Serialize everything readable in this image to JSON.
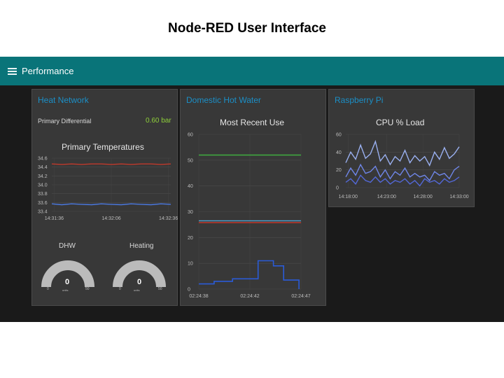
{
  "slide": {
    "title": "Node-RED User Interface"
  },
  "header": {
    "title": "Performance",
    "menu_icon": "hamburger-menu-icon"
  },
  "colors": {
    "header": "#097479",
    "card": "#383838",
    "card_title": "#1b8fc7",
    "value_green": "#8ecf3a",
    "gauge_track": "#bbbbbb"
  },
  "cards": {
    "heat": {
      "title": "Heat Network",
      "differential_label": "Primary Differential",
      "differential_value": "0.60 bar",
      "temps_title": "Primary Temperatures",
      "dhw_label": "DHW",
      "heating_label": "Heating",
      "gauge_min": "0",
      "gauge_max": "50",
      "gauge_unit": "units",
      "dhw_value": "0",
      "heating_value": "0"
    },
    "dhw": {
      "title": "Domestic Hot Water",
      "chart_title": "Most Recent Use"
    },
    "pi": {
      "title": "Raspberry Pi",
      "chart_title": "CPU % Load"
    }
  },
  "chart_data": [
    {
      "type": "line",
      "title": "Primary Temperatures",
      "x_ticks": [
        "14:31:36",
        "14:32:06",
        "14:32:36"
      ],
      "y_ticks": [
        "34.6",
        "34.4",
        "34.2",
        "34.0",
        "33.8",
        "33.6",
        "33.4"
      ],
      "ylim": [
        33.4,
        34.6
      ],
      "series": [
        {
          "color": "#c0392b",
          "values": [
            34.47,
            34.46,
            34.47,
            34.46,
            34.47,
            34.47,
            34.46,
            34.47,
            34.46,
            34.47,
            34.47,
            34.46,
            34.47
          ]
        },
        {
          "color": "#4a78e0",
          "values": [
            33.57,
            33.55,
            33.57,
            33.56,
            33.55,
            33.57,
            33.56,
            33.55,
            33.57,
            33.56,
            33.55,
            33.57,
            33.56
          ]
        }
      ]
    },
    {
      "type": "line",
      "title": "Most Recent Use",
      "x_ticks": [
        "02:24:38",
        "02:24:42",
        "02:24:47"
      ],
      "y_ticks": [
        "60",
        "50",
        "40",
        "30",
        "20",
        "10",
        "0"
      ],
      "ylim": [
        0,
        60
      ],
      "series": [
        {
          "color": "#3fae3f",
          "values": [
            52,
            52,
            52,
            52,
            52,
            52,
            52,
            52,
            52
          ]
        },
        {
          "color": "#4fa3d1",
          "values": [
            26.5,
            26.5,
            26.5,
            26.5,
            26.5,
            26.5,
            26.5,
            26.5,
            26.5
          ]
        },
        {
          "color": "#c0392b",
          "values": [
            25.8,
            25.8,
            25.8,
            25.8,
            25.8,
            25.8,
            25.8,
            25.8,
            25.8
          ]
        }
      ],
      "step_series": {
        "color": "#2a5bd7",
        "points": [
          [
            0,
            2
          ],
          [
            0.15,
            2
          ],
          [
            0.15,
            3
          ],
          [
            0.33,
            3
          ],
          [
            0.33,
            4
          ],
          [
            0.58,
            4
          ],
          [
            0.58,
            11
          ],
          [
            0.73,
            11
          ],
          [
            0.73,
            9
          ],
          [
            0.83,
            9
          ],
          [
            0.83,
            3.5
          ],
          [
            0.98,
            3.5
          ],
          [
            0.98,
            0
          ]
        ]
      }
    },
    {
      "type": "line",
      "title": "CPU % Load",
      "x_ticks": [
        "14:18:00",
        "14:23:00",
        "14:28:00",
        "14:33:00"
      ],
      "y_ticks": [
        "60",
        "40",
        "20",
        "0"
      ],
      "ylim": [
        0,
        60
      ],
      "series": [
        {
          "color": "#9ab0f0",
          "values": [
            28,
            40,
            32,
            48,
            33,
            38,
            52,
            30,
            37,
            26,
            35,
            30,
            42,
            28,
            36,
            30,
            35,
            25,
            40,
            32,
            45,
            33,
            38,
            46
          ]
        },
        {
          "color": "#6f86e8",
          "values": [
            12,
            22,
            14,
            26,
            16,
            18,
            24,
            12,
            20,
            10,
            18,
            14,
            22,
            12,
            16,
            12,
            14,
            8,
            18,
            14,
            16,
            10,
            20,
            24
          ]
        },
        {
          "color": "#5368d6",
          "values": [
            6,
            10,
            4,
            14,
            8,
            6,
            12,
            6,
            10,
            4,
            8,
            6,
            10,
            4,
            8,
            2,
            10,
            6,
            8,
            4,
            10,
            6,
            8,
            12
          ]
        }
      ]
    }
  ]
}
